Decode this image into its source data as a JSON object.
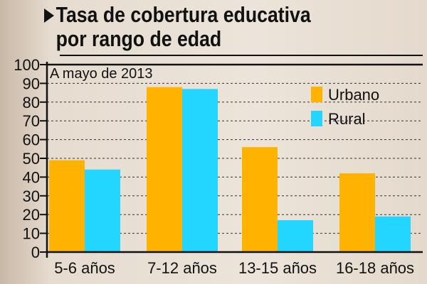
{
  "title": {
    "line1": "Tasa de cobertura educativa",
    "line2": "por rango de edad",
    "icon": "triangle-right-icon"
  },
  "chart_data": {
    "type": "bar",
    "title": "Tasa de cobertura educativa por rango de edad",
    "subtitle": "A mayo de 2013",
    "categories": [
      "5-6 años",
      "7-12 años",
      "13-15 años",
      "16-18 años"
    ],
    "series": [
      {
        "name": "Urbano",
        "color": "#ffb300",
        "values": [
          49,
          88,
          56,
          42
        ]
      },
      {
        "name": "Rural",
        "color": "#22d6ff",
        "values": [
          44,
          87,
          17,
          19
        ]
      }
    ],
    "ylim": [
      0,
      100
    ],
    "yticks": [
      0,
      10,
      20,
      30,
      40,
      50,
      60,
      70,
      80,
      90,
      100
    ],
    "grid": true,
    "legend": "top-right"
  }
}
